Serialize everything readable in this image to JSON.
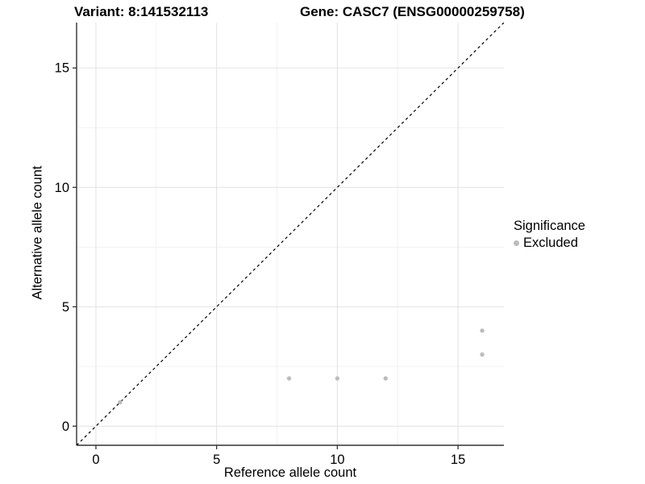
{
  "chart_data": {
    "type": "scatter",
    "title_left": "Variant: 8:141532113",
    "title_right": "Gene: CASC7 (ENSG00000259758)",
    "xlabel": "Reference allele count",
    "ylabel": "Alternative allele count",
    "x_ticks": [
      0,
      5,
      10,
      15
    ],
    "y_ticks": [
      0,
      5,
      10,
      15
    ],
    "x_minor": [
      2.5,
      7.5,
      12.5
    ],
    "y_minor": [
      2.5,
      7.5,
      12.5
    ],
    "xlim": [
      -0.8,
      16.9
    ],
    "ylim": [
      -0.8,
      16.9
    ],
    "grid": true,
    "legend": {
      "title": "Significance",
      "position": "right",
      "items": [
        {
          "label": "Excluded",
          "color": "#bcbcbc"
        }
      ]
    },
    "series": [
      {
        "name": "Excluded",
        "color": "#bcbcbc",
        "points": [
          [
            1,
            1
          ],
          [
            8,
            2
          ],
          [
            10,
            2
          ],
          [
            12,
            2
          ],
          [
            16,
            3
          ],
          [
            16,
            4
          ]
        ]
      }
    ],
    "reference_line": {
      "style": "dashed",
      "slope": 1,
      "intercept": 0,
      "color": "#000000"
    }
  },
  "colors": {
    "grid_major": "#e4e4e4",
    "grid_minor": "#f0f0f0",
    "axis": "#333333",
    "text": "#000000"
  }
}
